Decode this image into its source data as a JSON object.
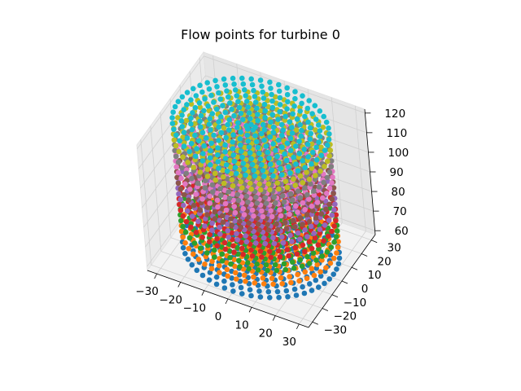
{
  "chart_data": {
    "type": "scatter3d",
    "title": "Flow points for turbine 0",
    "xlabel": "",
    "ylabel": "",
    "zlabel": "",
    "xlim": [
      -34,
      34
    ],
    "ylim": [
      -34,
      34
    ],
    "zlim": [
      58,
      122
    ],
    "xticks": [
      -30,
      -20,
      -10,
      0,
      10,
      20,
      30
    ],
    "xtick_labels": [
      "−30",
      "−20",
      "−10",
      "0",
      "10",
      "20",
      "30"
    ],
    "yticks": [
      -30,
      -20,
      -10,
      0,
      10,
      20,
      30
    ],
    "ytick_labels": [
      "−30",
      "−20",
      "−10",
      "0",
      "10",
      "20",
      "30"
    ],
    "zticks": [
      60,
      70,
      80,
      90,
      100,
      110,
      120
    ],
    "ztick_labels": [
      "60",
      "70",
      "80",
      "90",
      "100",
      "110",
      "120"
    ],
    "grid": true,
    "view": {
      "elev": 30,
      "azim": -60
    },
    "point_structure": "concentric rings about the turbine axis (x=0, y=0); ring radii 1.8, 5.4, 9.0, 12.6, 16.2, 19.8, 23.4, 27.0, 30.6 m; 5 points on the first ring then +6 points on each larger ring; each level z is plotted as its own colour series",
    "ring_radii": [
      1.8,
      5.4,
      9.0,
      12.6,
      16.2,
      19.8,
      23.4,
      27.0,
      30.6
    ],
    "series": [
      {
        "z": 60.0,
        "color": "#1f77b4"
      },
      {
        "z": 66.9,
        "color": "#ff7f0e"
      },
      {
        "z": 73.8,
        "color": "#2ca02c"
      },
      {
        "z": 80.6,
        "color": "#d62728"
      },
      {
        "z": 87.5,
        "color": "#9467bd"
      },
      {
        "z": 94.4,
        "color": "#8c564b"
      },
      {
        "z": 101.3,
        "color": "#e377c2"
      },
      {
        "z": 108.1,
        "color": "#7f7f7f"
      },
      {
        "z": 115.0,
        "color": "#bcbd22"
      },
      {
        "z": 121.9,
        "color": "#17becf"
      }
    ]
  }
}
